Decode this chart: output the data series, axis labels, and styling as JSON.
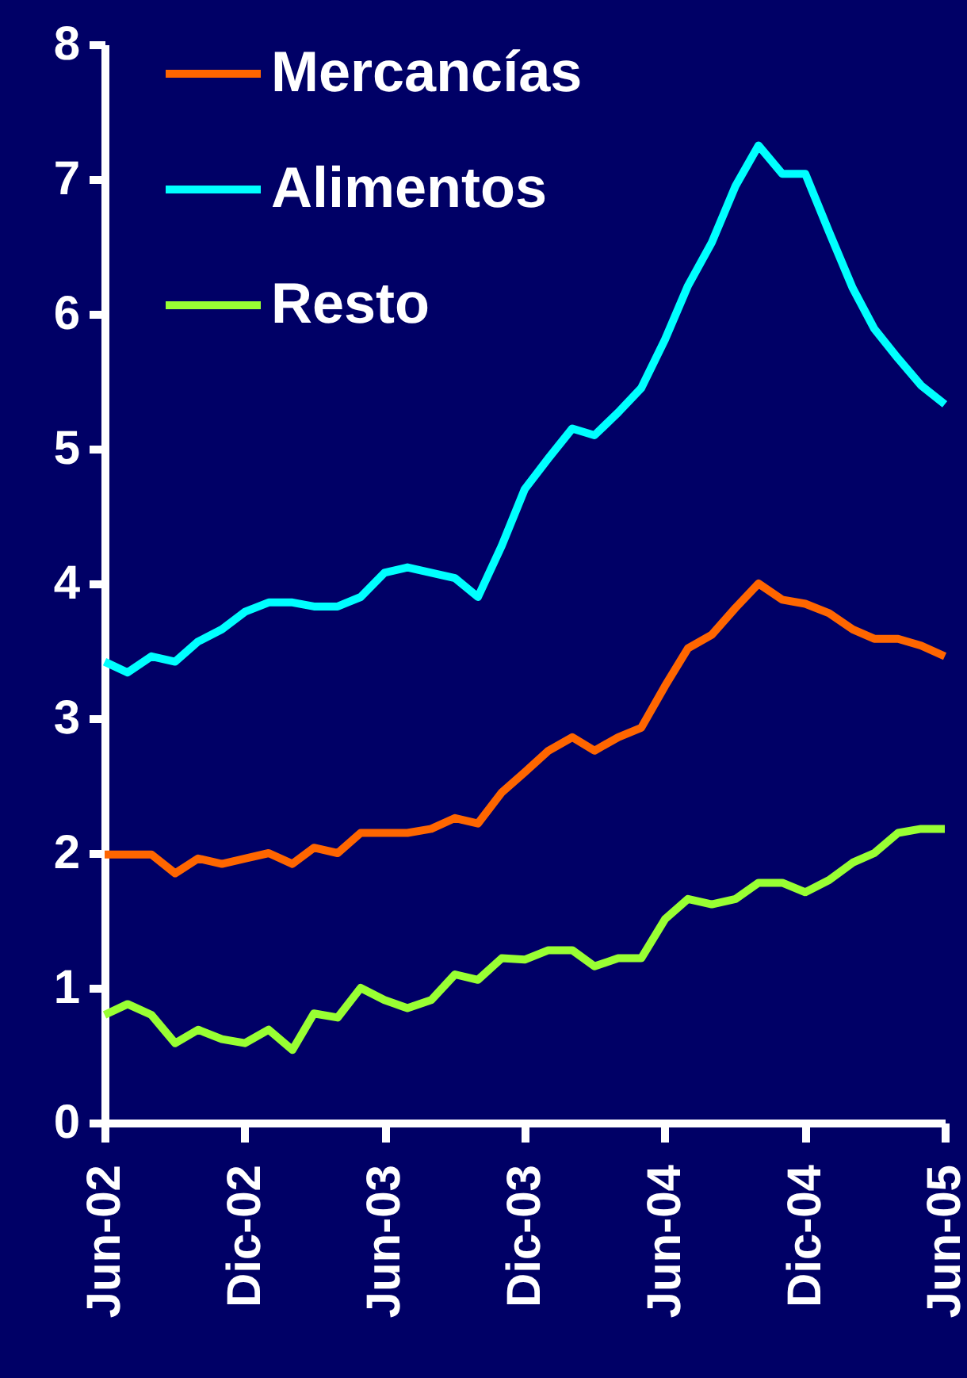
{
  "chart_data": {
    "type": "line",
    "x": [
      "2002-06",
      "2002-07",
      "2002-08",
      "2002-09",
      "2002-10",
      "2002-11",
      "2002-12",
      "2003-01",
      "2003-02",
      "2003-03",
      "2003-04",
      "2003-05",
      "2003-06",
      "2003-07",
      "2003-08",
      "2003-09",
      "2003-10",
      "2003-11",
      "2003-12",
      "2004-01",
      "2004-02",
      "2004-03",
      "2004-04",
      "2004-05",
      "2004-06",
      "2004-07",
      "2004-08",
      "2004-09",
      "2004-10",
      "2004-11",
      "2004-12",
      "2005-01",
      "2005-02",
      "2005-03",
      "2005-04",
      "2005-05",
      "2005-06"
    ],
    "series": [
      {
        "name": "Mercancías",
        "color": "#ff6600",
        "values": [
          1.99,
          1.99,
          1.99,
          1.85,
          1.96,
          1.92,
          1.96,
          2.0,
          1.92,
          2.04,
          2.0,
          2.15,
          2.15,
          2.15,
          2.18,
          2.26,
          2.22,
          2.45,
          2.6,
          2.76,
          2.86,
          2.76,
          2.86,
          2.93,
          3.24,
          3.52,
          3.62,
          3.82,
          4.0,
          3.88,
          3.85,
          3.78,
          3.66,
          3.59,
          3.59,
          3.54,
          3.46
        ]
      },
      {
        "name": "Alimentos",
        "color": "#00ffff",
        "values": [
          3.42,
          3.34,
          3.46,
          3.42,
          3.57,
          3.66,
          3.79,
          3.86,
          3.86,
          3.83,
          3.83,
          3.9,
          4.08,
          4.12,
          4.08,
          4.04,
          3.9,
          4.28,
          4.7,
          4.93,
          5.15,
          5.1,
          5.27,
          5.45,
          5.81,
          6.21,
          6.53,
          6.95,
          7.25,
          7.04,
          7.04,
          6.61,
          6.19,
          5.89,
          5.67,
          5.47,
          5.33
        ]
      },
      {
        "name": "Resto",
        "color": "#99ff33",
        "values": [
          0.8,
          0.88,
          0.8,
          0.59,
          0.69,
          0.62,
          0.59,
          0.69,
          0.54,
          0.81,
          0.78,
          1.0,
          0.91,
          0.85,
          0.91,
          1.1,
          1.06,
          1.22,
          1.21,
          1.28,
          1.28,
          1.16,
          1.22,
          1.22,
          1.51,
          1.66,
          1.62,
          1.66,
          1.78,
          1.78,
          1.71,
          1.8,
          1.93,
          2.0,
          2.15,
          2.18,
          2.18
        ]
      }
    ],
    "xlim": [
      "2002-06",
      "2005-06"
    ],
    "xticks": [
      {
        "value": "2002-06",
        "label": "Jun-02"
      },
      {
        "value": "2002-12",
        "label": "Dic-02"
      },
      {
        "value": "2003-06",
        "label": "Jun-03"
      },
      {
        "value": "2003-12",
        "label": "Dic-03"
      },
      {
        "value": "2004-06",
        "label": "Jun-04"
      },
      {
        "value": "2004-12",
        "label": "Dic-04"
      },
      {
        "value": "2005-06",
        "label": "Jun-05"
      }
    ],
    "ylim": [
      0,
      8
    ],
    "yticks": [
      0,
      1,
      2,
      3,
      4,
      5,
      6,
      7,
      8
    ],
    "grid": false,
    "legend": "top left",
    "marker": "none",
    "line_style": "solid"
  }
}
